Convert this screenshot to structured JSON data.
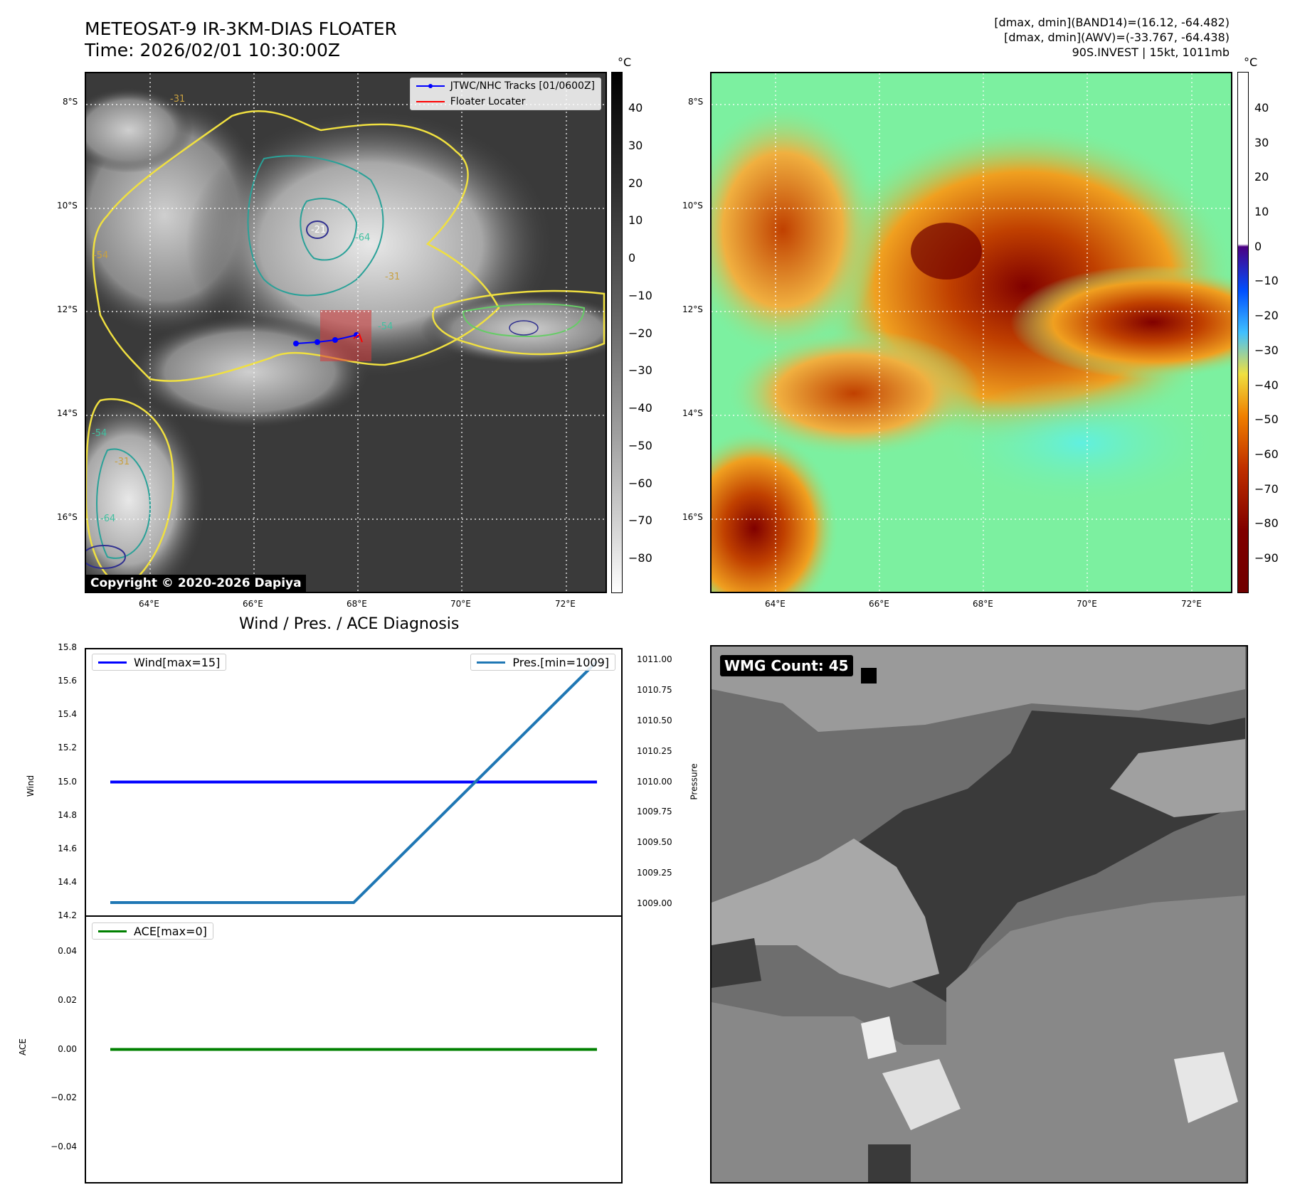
{
  "header": {
    "title_line1": "METEOSAT-9 IR-3KM-DIAS FLOATER",
    "title_line2": "Time: 2026/02/01 10:30:00Z",
    "info_line1": "[dmax, dmin](BAND14)=(16.12, -64.482)",
    "info_line2": "[dmax, dmin](AWV)=(-33.767, -64.438)",
    "info_line3": "90S.INVEST | 15kt, 1011mb"
  },
  "map_ir": {
    "lat_labels": [
      "8°S",
      "10°S",
      "12°S",
      "14°S",
      "16°S"
    ],
    "lon_labels": [
      "64°E",
      "66°E",
      "68°E",
      "70°E",
      "72°E"
    ],
    "contour_labels": [
      "-31",
      "-54",
      "-64",
      "-21",
      "-31",
      "-54",
      "-31",
      "-54",
      "-64"
    ],
    "legend": [
      {
        "label": "JTWC/NHC Tracks [01/0600Z]",
        "color": "#0000ff"
      },
      {
        "label": "Floater Locater",
        "color": "#ff0000"
      }
    ],
    "copyright": "Copyright © 2020-2026 Dapiya",
    "colorbar_unit": "°C",
    "colorbar_ticks": [
      "40",
      "30",
      "20",
      "10",
      "0",
      "−10",
      "−20",
      "−30",
      "−40",
      "−50",
      "−60",
      "−70",
      "−80"
    ]
  },
  "map_awv": {
    "lat_labels": [
      "8°S",
      "10°S",
      "12°S",
      "14°S",
      "16°S"
    ],
    "lon_labels": [
      "64°E",
      "66°E",
      "68°E",
      "70°E",
      "72°E"
    ],
    "colorbar_unit": "°C",
    "colorbar_ticks": [
      "40",
      "30",
      "20",
      "10",
      "0",
      "−10",
      "−20",
      "−30",
      "−40",
      "−50",
      "−60",
      "−70",
      "−80",
      "−90"
    ]
  },
  "diagnosis": {
    "title": "Wind / Pres. / ACE Diagnosis"
  },
  "wmg": {
    "label": "WMG Count: 45"
  },
  "chart_data": [
    {
      "type": "line",
      "title": "Wind / Pres. / ACE Diagnosis",
      "ylabel": "Wind",
      "ylim": [
        14.2,
        15.8
      ],
      "yticks": [
        "15.8",
        "15.6",
        "15.4",
        "15.2",
        "15.0",
        "14.8",
        "14.6",
        "14.4",
        "14.2"
      ],
      "y2label": "Pressure",
      "y2lim": [
        1008.9,
        1011.1
      ],
      "y2ticks": [
        "1011.00",
        "1010.75",
        "1010.50",
        "1010.25",
        "1010.00",
        "1009.75",
        "1009.50",
        "1009.25",
        "1009.00"
      ],
      "x": [
        0,
        1,
        2
      ],
      "series": [
        {
          "name": "Wind[max=15]",
          "axis": "left",
          "color": "#0000ff",
          "values": [
            15,
            15,
            15
          ]
        },
        {
          "name": "Pres.[min=1009]",
          "axis": "right",
          "color": "#1f77b4",
          "values": [
            1009,
            1009,
            1011
          ]
        }
      ],
      "legend": "top-left / top-right"
    },
    {
      "type": "line",
      "ylabel": "ACE",
      "ylim": [
        -0.055,
        0.055
      ],
      "yticks": [
        "0.04",
        "0.02",
        "0.00",
        "−0.02",
        "−0.04"
      ],
      "x": [
        0,
        1,
        2
      ],
      "series": [
        {
          "name": "ACE[max=0]",
          "axis": "left",
          "color": "#008000",
          "values": [
            0,
            0,
            0
          ]
        }
      ],
      "legend": "top-left"
    }
  ]
}
